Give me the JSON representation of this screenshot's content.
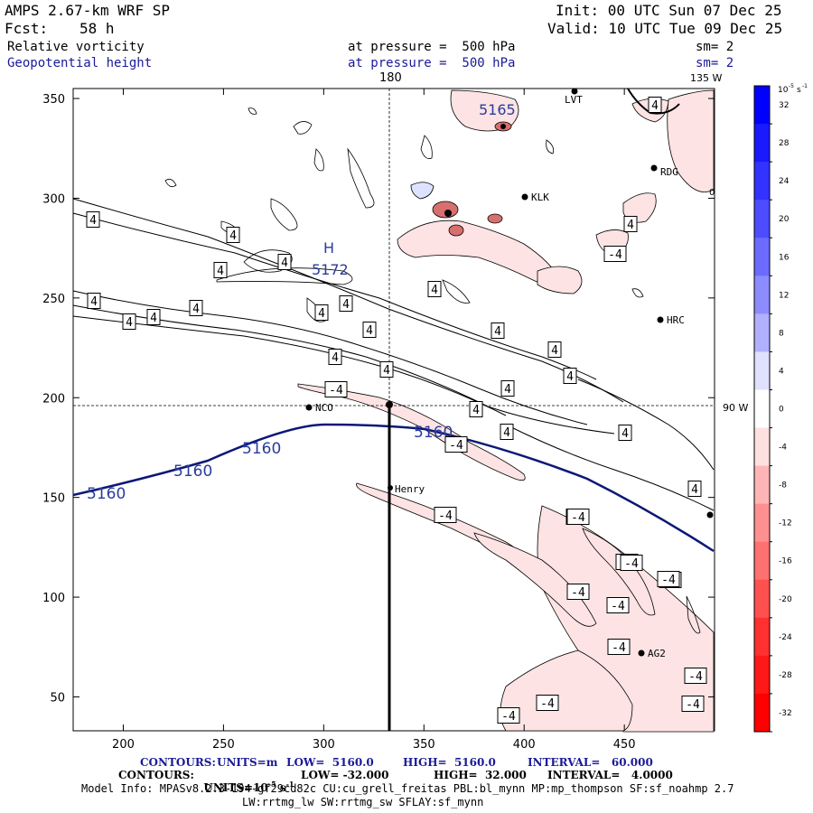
{
  "header": {
    "model": "AMPS 2.67-km WRF SP",
    "init": "Init: 00 UTC Sun 07 Dec 25",
    "fcst_label": "Fcst:",
    "fcst_value": "58 h",
    "valid": "Valid: 10 UTC Tue 09 Dec 25",
    "field1": "Relative vorticity",
    "field1_level": "at pressure =  500 hPa",
    "field1_sm": "sm= 2",
    "field2": "Geopotential height",
    "field2_level": "at pressure =  500 hPa",
    "field2_sm": "sm= 2"
  },
  "map_labels": {
    "lon_180": "180",
    "lon_135w": "135 W",
    "lat_90w": "90 W",
    "cb_zero": "0",
    "high_marker": "H",
    "high_value": "5172",
    "top_height": "5165"
  },
  "colorbar": {
    "unit": "10",
    "labels": [
      "32",
      "28",
      "24",
      "20",
      "16",
      "12",
      "8",
      "4",
      "0",
      "-4",
      "-8",
      "-12",
      "-16",
      "-20",
      "-24",
      "-28",
      "-32"
    ],
    "colors": [
      "#0000ff",
      "#1a1aff",
      "#3333ff",
      "#4d4dff",
      "#6b6bff",
      "#8c8cff",
      "#b0b0ff",
      "#e0e0ff",
      "#ffffff",
      "#ffe0e0",
      "#ffb5b5",
      "#ff9090",
      "#ff7070",
      "#ff5050",
      "#ff3030",
      "#ff1818",
      "#ff0000"
    ]
  },
  "stations": [
    {
      "name": "LVT"
    },
    {
      "name": "RDG"
    },
    {
      "name": "KLK"
    },
    {
      "name": "HRC"
    },
    {
      "name": "NCO"
    },
    {
      "name": "Henry"
    },
    {
      "name": "AG2"
    }
  ],
  "chart_data": {
    "type": "map",
    "x_axis": {
      "range": [
        175,
        495
      ],
      "ticks": [
        200,
        250,
        300,
        350,
        400,
        450
      ],
      "tick_labels": [
        "200",
        "250",
        "300",
        "350",
        "400",
        "450"
      ]
    },
    "y_axis": {
      "range": [
        33,
        355
      ],
      "ticks": [
        50,
        100,
        150,
        200,
        250,
        300,
        350
      ],
      "tick_labels": [
        "50",
        "100",
        "150",
        "200",
        "250",
        "300",
        "350"
      ]
    },
    "height_contour_labels": [
      "5160",
      "5160",
      "5160",
      "5160"
    ],
    "vorticity_pos_labels": [
      "4",
      "4",
      "4",
      "4",
      "4",
      "4",
      "4",
      "4",
      "4",
      "4",
      "4",
      "4",
      "4",
      "4",
      "4",
      "4",
      "4",
      "4",
      "4",
      "4",
      "4",
      "4",
      "4",
      "4"
    ],
    "vorticity_neg_labels": [
      "-4",
      "-4",
      "-4",
      "-4",
      "-4",
      "-4",
      "-4",
      "-4",
      "-4",
      "-4",
      "-4",
      "-4",
      "-4",
      "-4",
      "-4",
      "-4",
      "-4"
    ]
  },
  "footer": {
    "line1_label": "CONTOURS:",
    "line1_units": "UNITS=m",
    "line1_low": "LOW=  5160.0",
    "line1_high": "HIGH=  5160.0",
    "line1_interval": "INTERVAL=   60.000",
    "line2_label": "CONTOURS:",
    "line2_units_pre": "UNITS=10",
    "line2_units_exp": "-5",
    "line2_units_post": " s",
    "line2_units_exp2": "-1",
    "line2_low": "LOW= -32.000",
    "line2_high": "HIGH=  32.000",
    "line2_interval": "INTERVAL=   4.0000",
    "model_info": "Model Info: MPASv8.2.3-194-gf29cd82c CU:cu_grell_freitas PBL:bl_mynn MP:mp_thompson SF:sf_noahmp 2.7",
    "model_info2": "LW:rrtmg_lw SW:rrtmg_sw SFLAY:sf_mynn"
  }
}
